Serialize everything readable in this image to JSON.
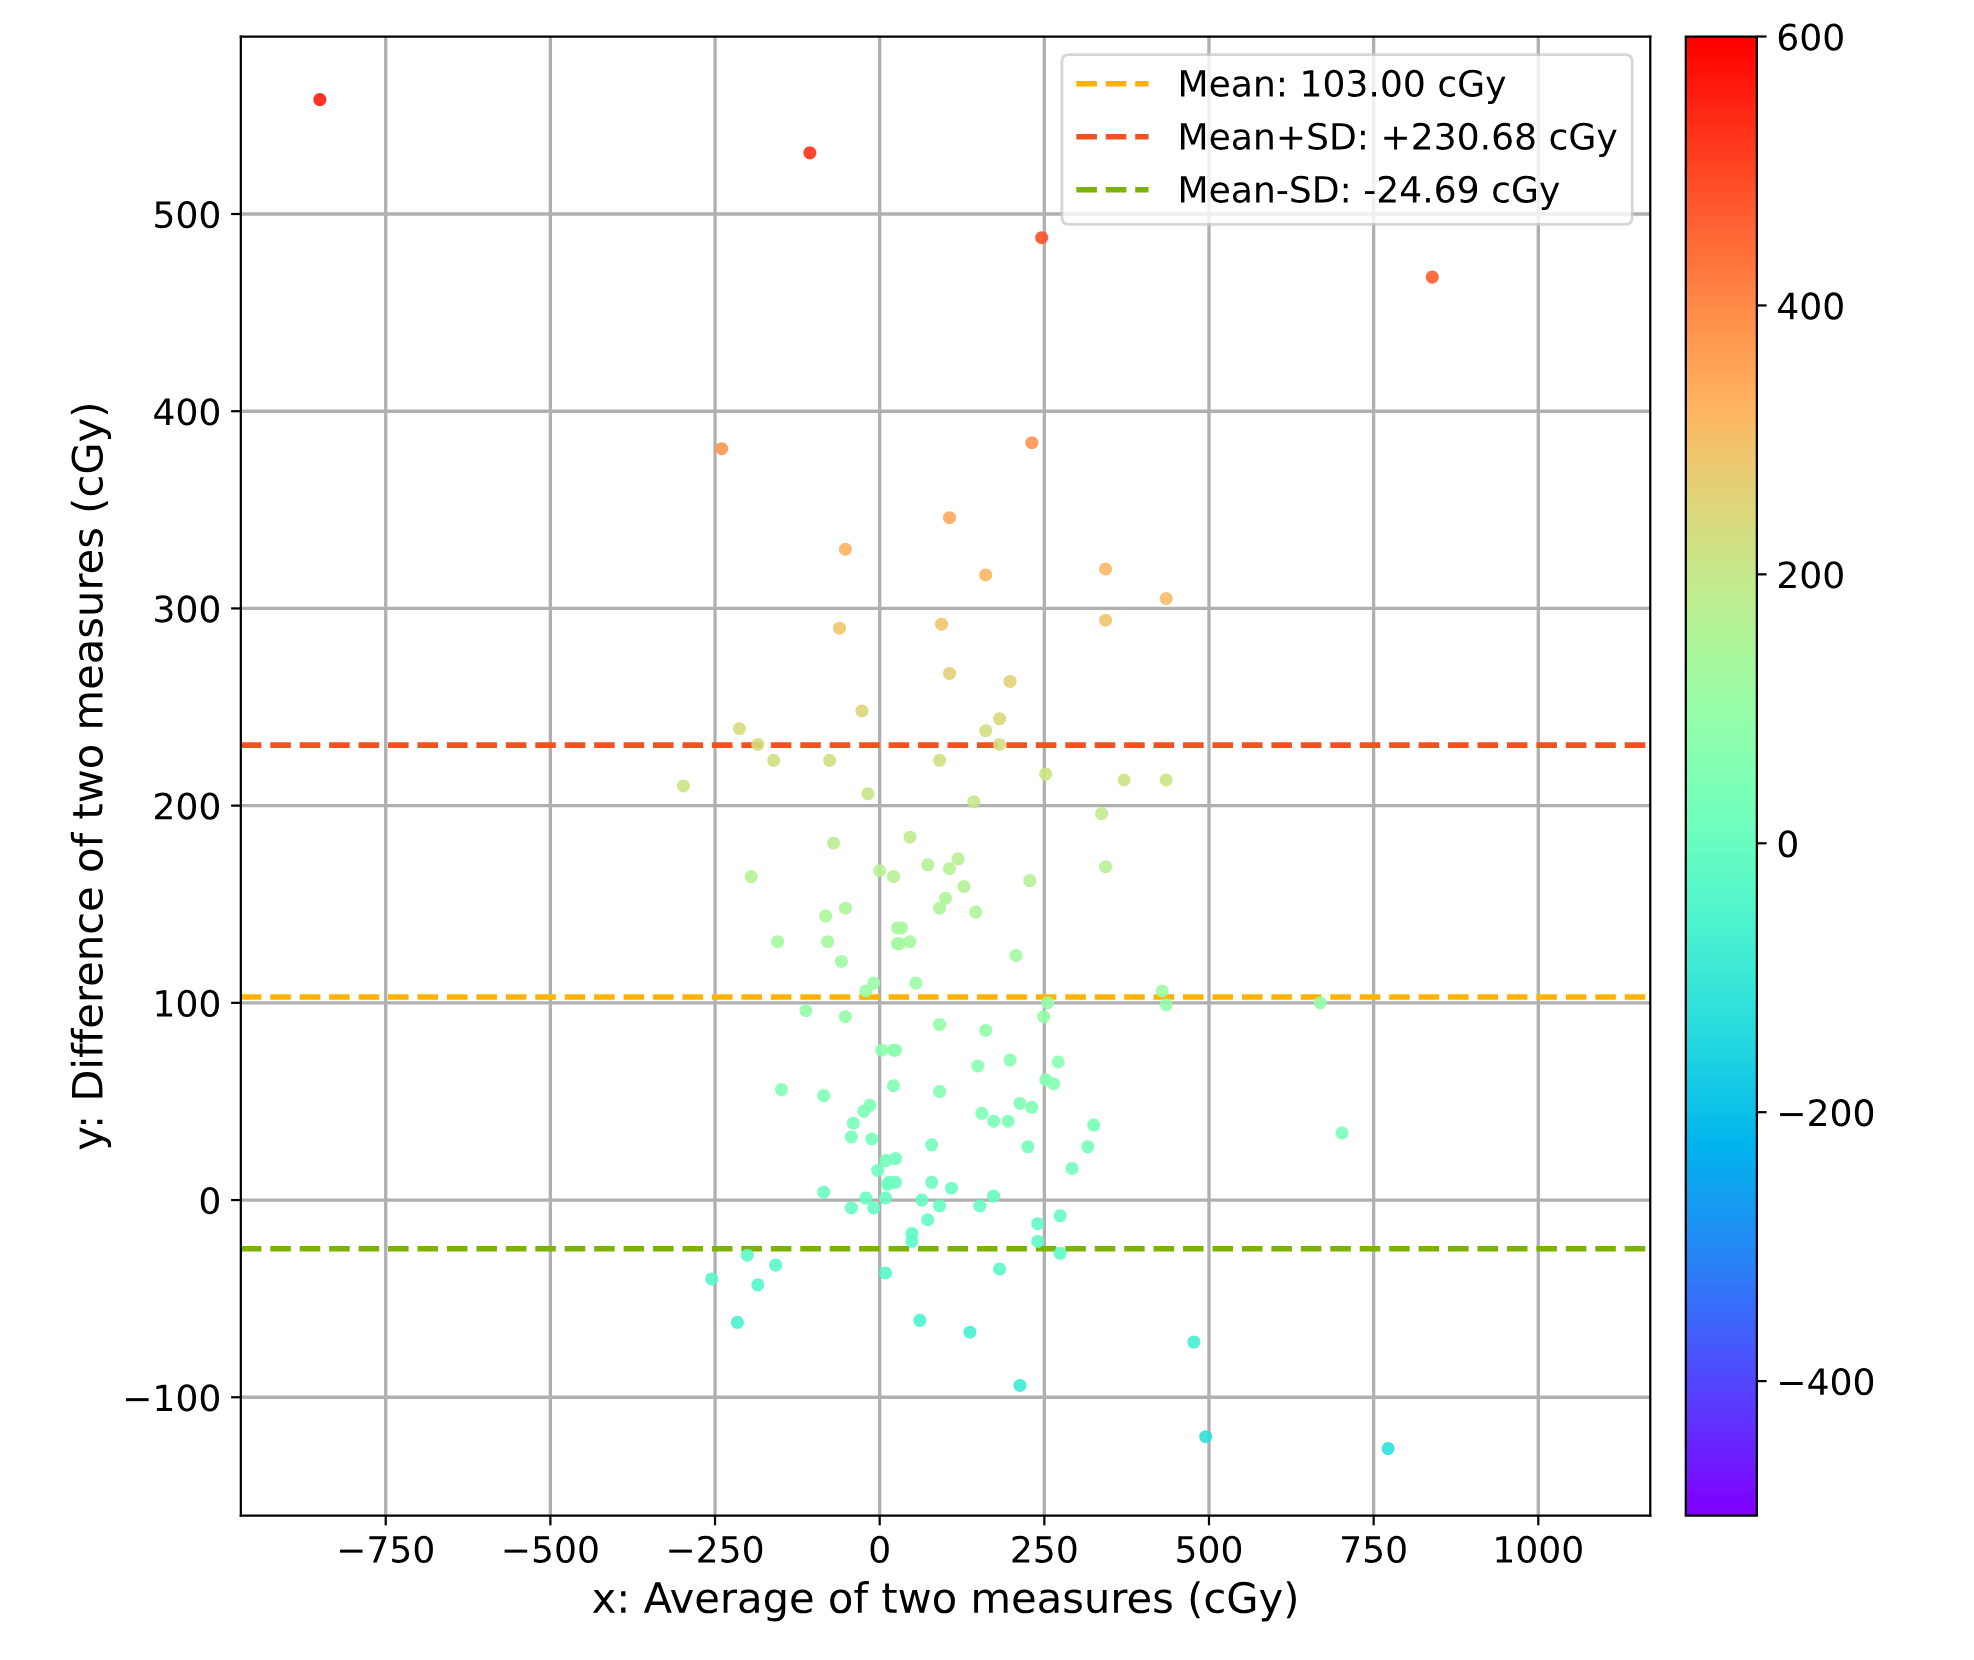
{
  "chart_data": {
    "type": "scatter",
    "xlabel": "x: Average of two measures (cGy)",
    "ylabel": "y: Difference of two measures (cGy)",
    "xlim": [
      -970,
      1170
    ],
    "xticks": [
      {
        "value": -750,
        "label": "−750"
      },
      {
        "value": -500,
        "label": "−500"
      },
      {
        "value": -250,
        "label": "−250"
      },
      0,
      250,
      500,
      750,
      1000
    ],
    "ylim": [
      -160,
      590
    ],
    "yticks": [
      {
        "value": -100,
        "label": "−100"
      },
      0,
      100,
      200,
      300,
      400,
      500
    ],
    "clim": [
      -500,
      600
    ],
    "cticks": [
      {
        "value": -400,
        "label": "−400"
      },
      {
        "value": -200,
        "label": "−200"
      },
      0,
      200,
      400,
      600
    ],
    "grid": true,
    "legend": "top right",
    "marker": "circle",
    "series": [
      {
        "x": [
          -850,
          -106,
          246,
          839,
          -240,
          231,
          -52,
          106,
          161,
          343,
          435,
          -61,
          94,
          343,
          106,
          198,
          -27,
          182,
          -213,
          -185,
          -161,
          -76,
          -298,
          -18,
          -70,
          -195,
          0,
          21,
          -52,
          -82,
          -155,
          -79,
          -58,
          27,
          27,
          -9,
          -21,
          -112,
          -52,
          3,
          21,
          161,
          182,
          91,
          252,
          371,
          435,
          143,
          337,
          46,
          73,
          119,
          106,
          343,
          128,
          228,
          100,
          91,
          146,
          33,
          30,
          46,
          207,
          55,
          429,
          435,
          91,
          161,
          249,
          255,
          24,
          149,
          198,
          271,
          669,
          702,
          477,
          495,
          772,
          -149,
          -85,
          -15,
          -24,
          -40,
          -12,
          -43,
          9,
          -3,
          12,
          -85,
          -21,
          -43,
          -9,
          9,
          -201,
          -158,
          -255,
          -185,
          -216,
          9,
          21,
          91,
          252,
          264,
          155,
          173,
          195,
          213,
          231,
          325,
          316,
          292,
          79,
          225,
          24,
          15,
          24,
          79,
          109,
          64,
          91,
          73,
          152,
          173,
          49,
          49,
          240,
          240,
          274,
          274,
          182,
          61,
          137,
          213
        ],
        "values": [
          558,
          531,
          488,
          468,
          381,
          384,
          330,
          346,
          317,
          320,
          305,
          290,
          292,
          294,
          267,
          263,
          248,
          244,
          239,
          231,
          223,
          223,
          210,
          206,
          181,
          164,
          167,
          164,
          148,
          144,
          131,
          131,
          121,
          138,
          130,
          110,
          106,
          96,
          93,
          76,
          76,
          238,
          231,
          223,
          216,
          213,
          213,
          202,
          196,
          184,
          170,
          173,
          168,
          169,
          159,
          162,
          153,
          148,
          146,
          138,
          130,
          131,
          124,
          110,
          106,
          99,
          89,
          86,
          93,
          100,
          76,
          68,
          71,
          70,
          100,
          34,
          -72,
          -120,
          -126,
          56,
          53,
          48,
          45,
          39,
          31,
          32,
          20,
          15,
          8,
          4,
          1,
          -4,
          -4,
          1,
          -28,
          -33,
          -40,
          -43,
          -62,
          -37,
          58,
          55,
          61,
          59,
          44,
          40,
          40,
          49,
          47,
          38,
          27,
          16,
          28,
          27,
          21,
          9,
          9,
          9,
          6,
          0,
          -3,
          -10,
          -3,
          2,
          -17,
          -21,
          -12,
          -21,
          -8,
          -27,
          -35,
          -61,
          -67,
          -94
        ]
      }
    ],
    "ref_lines": [
      {
        "axis": "y",
        "value": 103.0,
        "label": "Mean: 103.00 cGy",
        "color": "#ffb300",
        "line_style": "dashed"
      },
      {
        "axis": "y",
        "value": 230.68,
        "label": "Mean+SD: +230.68 cGy",
        "color": "#f4511e",
        "line_style": "dashed"
      },
      {
        "axis": "y",
        "value": -24.69,
        "label": "Mean-SD: -24.69 cGy",
        "color": "#7cb300",
        "line_style": "dashed"
      }
    ]
  }
}
